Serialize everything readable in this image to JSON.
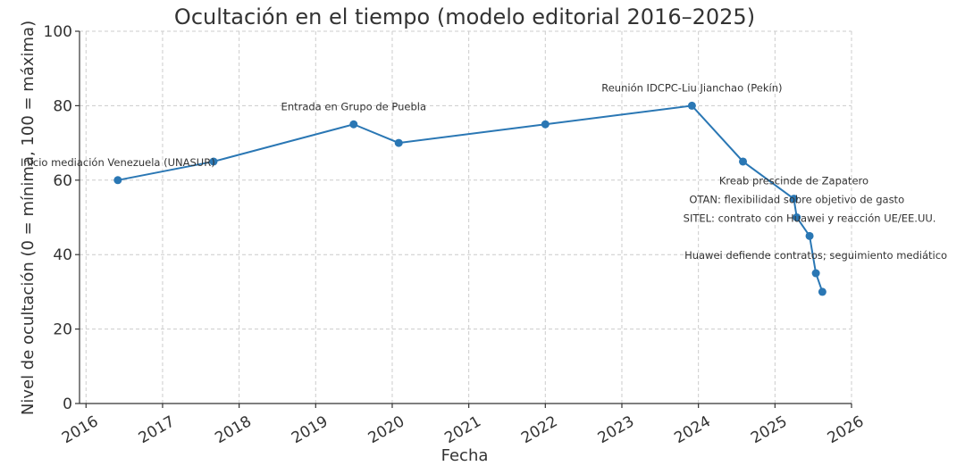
{
  "colors": {
    "series": "#2a77b4",
    "text": "#333333",
    "grid": "#cccccc"
  },
  "chart_data": {
    "type": "line",
    "title": "Ocultación en el tiempo (modelo editorial 2016–2025)",
    "xlabel": "Fecha",
    "ylabel": "Nivel de ocultación (0 = mínima, 100 = máxima)",
    "xlim": [
      "2015-12-01",
      "2026-01-01"
    ],
    "ylim": [
      0,
      100
    ],
    "grid": true,
    "x_ticks": [
      "2016",
      "2017",
      "2018",
      "2019",
      "2020",
      "2021",
      "2022",
      "2023",
      "2024",
      "2025",
      "2026"
    ],
    "y_ticks": [
      "0",
      "20",
      "40",
      "60",
      "80",
      "100"
    ],
    "series": [
      {
        "x": [
          "2016-06-01",
          "2017-09-01",
          "2019-07-01",
          "2020-02-01",
          "2022-01-01",
          "2023-12-01",
          "2024-08-01",
          "2025-04-01",
          "2025-04-15",
          "2025-06-15",
          "2025-07-15",
          "2025-08-15"
        ],
        "y": [
          60,
          65,
          75,
          70,
          75,
          80,
          65,
          55,
          50,
          45,
          35,
          30
        ]
      }
    ],
    "annotations": [
      {
        "text": "Inicio mediación Venezuela (UNASUR)",
        "x": "2016-06-01",
        "y": 60
      },
      {
        "text": "Entrada en Grupo de Puebla",
        "x": "2019-07-01",
        "y": 75
      },
      {
        "text": "Reunión IDCPC-Liu Jianchao (Pekín)",
        "x": "2023-12-01",
        "y": 80
      },
      {
        "text": "Kreab prescinde de Zapatero",
        "x": "2025-04-01",
        "y": 55
      },
      {
        "text": "OTAN: flexibilidad sobre objetivo de gasto",
        "x": "2025-04-15",
        "y": 50
      },
      {
        "text": "SITEL: contrato con Huawei y reacción UE/EE.UU.",
        "x": "2025-06-15",
        "y": 45
      },
      {
        "text": "Huawei defiende contratos; seguimiento mediático",
        "x": "2025-07-15",
        "y": 35
      }
    ]
  }
}
